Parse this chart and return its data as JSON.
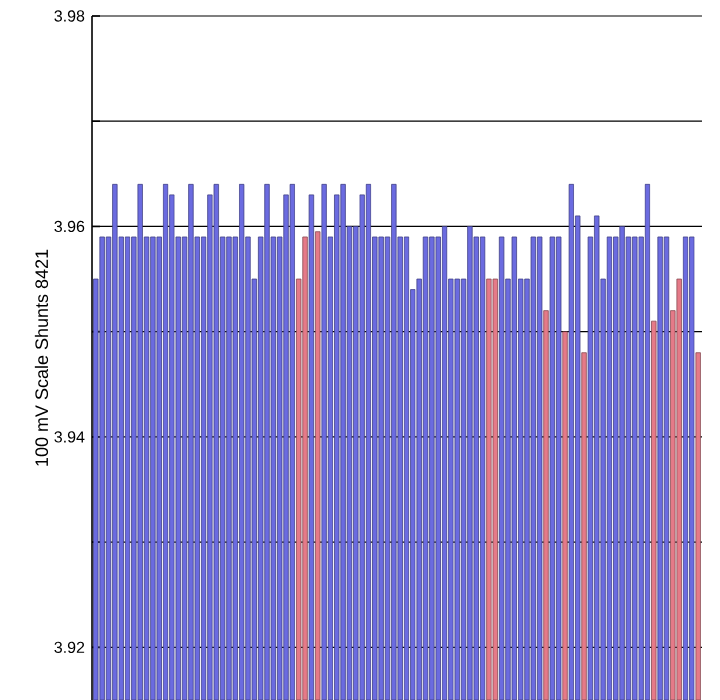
{
  "chart_data": {
    "type": "bar",
    "ylabel": "100 mV Scale   Shunts 8421",
    "categories": [
      null,
      null,
      null,
      null,
      null,
      null,
      null,
      null,
      null,
      null,
      null,
      null,
      null,
      null,
      null,
      null,
      null,
      null,
      null,
      null,
      null,
      null,
      null,
      null,
      null,
      null,
      null,
      null,
      null,
      null,
      null,
      null,
      null,
      null,
      null,
      null,
      null,
      null,
      null,
      null,
      null,
      null,
      null,
      null,
      null,
      null,
      null,
      null,
      null,
      null,
      null,
      null,
      null,
      null,
      null,
      null,
      null,
      null,
      null,
      null,
      null,
      null,
      null,
      null,
      null,
      null,
      null,
      null,
      null,
      null,
      null,
      null,
      null,
      null,
      null,
      null,
      null,
      null,
      null,
      null,
      null,
      null,
      null,
      null,
      null,
      null,
      null,
      null,
      null,
      null,
      null,
      null,
      null,
      null,
      null,
      null
    ],
    "values": [
      3.955,
      3.959,
      3.959,
      3.964,
      3.959,
      3.959,
      3.959,
      3.964,
      3.959,
      3.959,
      3.959,
      3.964,
      3.963,
      3.959,
      3.959,
      3.964,
      3.959,
      3.959,
      3.963,
      3.964,
      3.959,
      3.959,
      3.959,
      3.964,
      3.959,
      3.955,
      3.959,
      3.964,
      3.959,
      3.959,
      3.963,
      3.964,
      3.955,
      3.959,
      3.963,
      3.9595,
      3.964,
      3.959,
      3.963,
      3.964,
      3.96,
      3.96,
      3.963,
      3.964,
      3.959,
      3.959,
      3.959,
      3.964,
      3.959,
      3.959,
      3.954,
      3.955,
      3.959,
      3.959,
      3.959,
      3.96,
      3.955,
      3.955,
      3.955,
      3.96,
      3.959,
      3.959,
      3.955,
      3.955,
      3.959,
      3.955,
      3.959,
      3.955,
      3.955,
      3.959,
      3.959,
      3.952,
      3.959,
      3.959,
      3.95,
      3.964,
      3.961,
      3.948,
      3.959,
      3.961,
      3.955,
      3.959,
      3.959,
      3.96,
      3.959,
      3.959,
      3.959,
      3.964,
      3.951,
      3.959,
      3.959,
      3.952,
      3.955,
      3.959,
      3.959,
      3.948
    ],
    "colors": [
      "#6b6be0",
      "#6b6be0",
      "#6b6be0",
      "#6b6be0",
      "#6b6be0",
      "#6b6be0",
      "#6b6be0",
      "#6b6be0",
      "#6b6be0",
      "#6b6be0",
      "#6b6be0",
      "#6b6be0",
      "#6b6be0",
      "#6b6be0",
      "#6b6be0",
      "#6b6be0",
      "#6b6be0",
      "#6b6be0",
      "#6b6be0",
      "#6b6be0",
      "#6b6be0",
      "#6b6be0",
      "#6b6be0",
      "#6b6be0",
      "#6b6be0",
      "#6b6be0",
      "#6b6be0",
      "#6b6be0",
      "#6b6be0",
      "#6b6be0",
      "#6b6be0",
      "#6b6be0",
      "#e57a88",
      "#e57a88",
      "#6b6be0",
      "#e57a88",
      "#6b6be0",
      "#6b6be0",
      "#6b6be0",
      "#6b6be0",
      "#6b6be0",
      "#6b6be0",
      "#6b6be0",
      "#6b6be0",
      "#6b6be0",
      "#6b6be0",
      "#6b6be0",
      "#6b6be0",
      "#6b6be0",
      "#6b6be0",
      "#6b6be0",
      "#6b6be0",
      "#6b6be0",
      "#6b6be0",
      "#6b6be0",
      "#6b6be0",
      "#6b6be0",
      "#6b6be0",
      "#6b6be0",
      "#6b6be0",
      "#6b6be0",
      "#6b6be0",
      "#e57a88",
      "#e57a88",
      "#6b6be0",
      "#6b6be0",
      "#6b6be0",
      "#6b6be0",
      "#6b6be0",
      "#6b6be0",
      "#6b6be0",
      "#e57a88",
      "#6b6be0",
      "#6b6be0",
      "#e57a88",
      "#6b6be0",
      "#6b6be0",
      "#e57a88",
      "#6b6be0",
      "#6b6be0",
      "#6b6be0",
      "#6b6be0",
      "#6b6be0",
      "#6b6be0",
      "#6b6be0",
      "#6b6be0",
      "#6b6be0",
      "#6b6be0",
      "#e57a88",
      "#6b6be0",
      "#6b6be0",
      "#e57a88",
      "#e57a88",
      "#6b6be0",
      "#6b6be0",
      "#e57a88"
    ],
    "ylim": [
      3.915,
      3.98
    ],
    "yticks": [
      3.92,
      {
        "value": 3.93,
        "label": null
      },
      3.94,
      {
        "value": 3.95,
        "label": null
      },
      3.96,
      {
        "value": 3.97,
        "label": null
      },
      3.98
    ],
    "grid": "y"
  }
}
